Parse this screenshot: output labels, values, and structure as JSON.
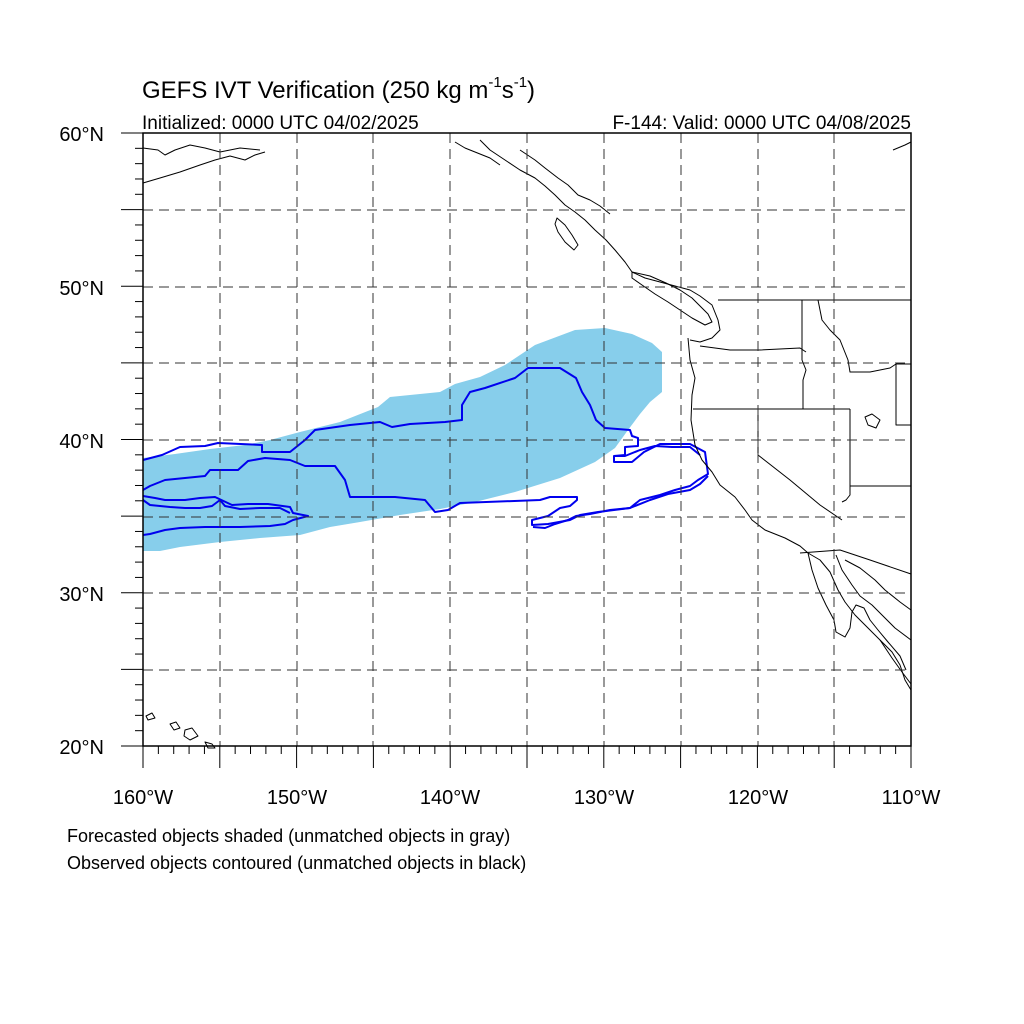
{
  "title": {
    "main": "GEFS IVT Verification (250 kg m",
    "sup1": "-1",
    "mid": "s",
    "sup2": "-1",
    "end": ")"
  },
  "initialized": "Initialized: 0000 UTC 04/02/2025",
  "valid": "F-144: Valid: 0000 UTC 04/08/2025",
  "lat_labels": [
    "60°N",
    "50°N",
    "40°N",
    "30°N",
    "20°N"
  ],
  "lon_labels": [
    "160°W",
    "150°W",
    "140°W",
    "130°W",
    "120°W",
    "110°W"
  ],
  "footnote_1": "Forecasted objects shaded (unmatched objects in gray)",
  "footnote_2": "Observed objects contoured (unmatched objects in black)",
  "colors": {
    "forecast_fill": "#87ceeb",
    "observed_contour": "#0000ee",
    "grid": "#000000",
    "coast": "#000000"
  },
  "map_extent": {
    "lon": [
      -160,
      -110
    ],
    "lat": [
      20,
      60
    ]
  }
}
